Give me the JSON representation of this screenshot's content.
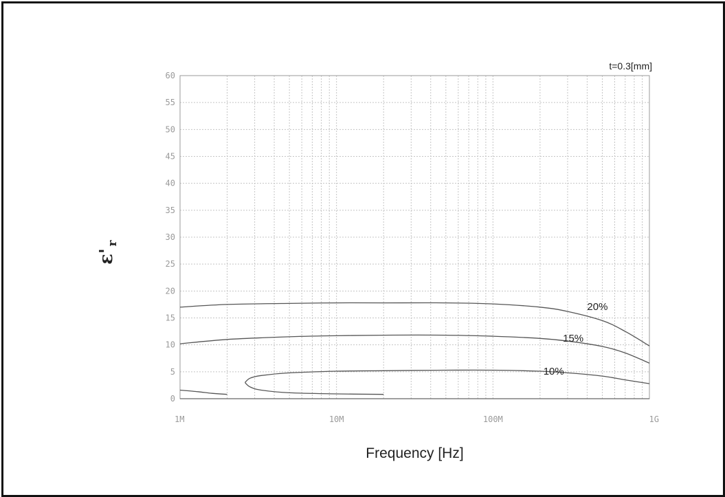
{
  "chart_data": {
    "type": "line",
    "title": "",
    "annotation": "t=0.3[mm]",
    "xlabel": "Frequency [Hz]",
    "ylabel": {
      "main": "ε'",
      "sub": "r"
    },
    "x_scale": "log",
    "xlim": [
      1000000,
      1000000000
    ],
    "ylim": [
      0,
      60
    ],
    "x_ticks": [
      {
        "value": 1000000,
        "label": "1M"
      },
      {
        "value": 10000000,
        "label": "10M"
      },
      {
        "value": 100000000,
        "label": "100M"
      },
      {
        "value": 1000000000,
        "label": "1G"
      }
    ],
    "y_ticks": [
      0,
      5,
      10,
      15,
      20,
      25,
      30,
      35,
      40,
      45,
      50,
      55,
      60
    ],
    "grid": true,
    "legend": "none",
    "series": [
      {
        "name": "20%",
        "color": "#555555",
        "x": [
          1000000,
          2000000,
          5000000,
          10000000,
          20000000,
          50000000,
          100000000,
          200000000,
          300000000,
          500000000,
          700000000,
          1000000000
        ],
        "y": [
          17,
          17.5,
          17.7,
          17.8,
          17.8,
          17.8,
          17.6,
          17,
          16.2,
          14.5,
          12.5,
          9.8
        ]
      },
      {
        "name": "15%",
        "color": "#555555",
        "x": [
          1000000,
          2000000,
          5000000,
          10000000,
          20000000,
          50000000,
          100000000,
          200000000,
          300000000,
          500000000,
          700000000,
          1000000000
        ],
        "y": [
          10.2,
          11,
          11.5,
          11.7,
          11.8,
          11.8,
          11.6,
          11.2,
          10.7,
          9.7,
          8.5,
          6.6
        ]
      },
      {
        "name": "10%",
        "color": "#555555",
        "x": [
          2600000,
          2800000,
          3300000,
          5000000,
          10000000,
          20000000,
          50000000,
          100000000,
          200000000,
          300000000,
          500000000,
          700000000,
          1000000000
        ],
        "y": [
          3,
          3.8,
          4.3,
          4.8,
          5.1,
          5.2,
          5.3,
          5.3,
          5.1,
          4.8,
          4.2,
          3.5,
          2.8
        ]
      },
      {
        "name": "",
        "color": "#555555",
        "x": [
          2600000,
          2800000,
          3300000,
          5000000,
          10000000,
          20000000
        ],
        "y": [
          3,
          2.2,
          1.6,
          1.1,
          0.9,
          0.8
        ]
      },
      {
        "name": "",
        "color": "#555555",
        "x": [
          1000000,
          1300000,
          1600000,
          2000000
        ],
        "y": [
          1.6,
          1.3,
          1,
          0.8
        ]
      }
    ],
    "series_labels": [
      {
        "text": "20%",
        "x": 400000000,
        "y": 16.5
      },
      {
        "text": "15%",
        "x": 280000000,
        "y": 10.6
      },
      {
        "text": "10%",
        "x": 210000000,
        "y": 4.5
      }
    ]
  }
}
